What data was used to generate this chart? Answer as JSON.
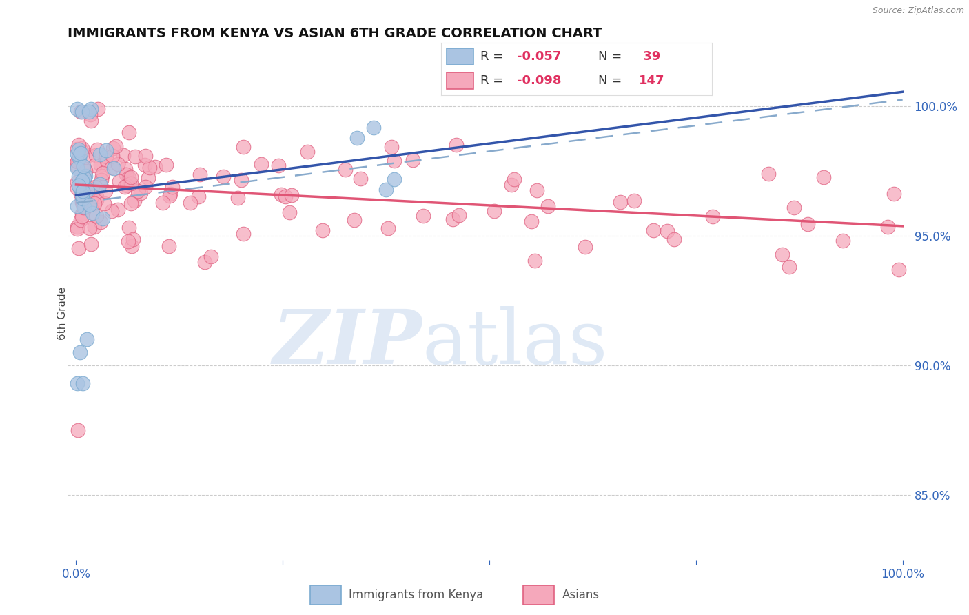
{
  "title": "IMMIGRANTS FROM KENYA VS ASIAN 6TH GRADE CORRELATION CHART",
  "source_text": "Source: ZipAtlas.com",
  "ylabel": "6th Grade",
  "color_kenya": "#aac4e2",
  "color_kenya_edge": "#7aaad0",
  "color_asian": "#f5a8bb",
  "color_asian_edge": "#e06080",
  "color_trend_kenya_solid": "#3355aa",
  "color_trend_kenya_dashed": "#88aacc",
  "color_trend_asian": "#e05575",
  "watermark_zip_color": "#c8d8ee",
  "watermark_atlas_color": "#b0c8e8",
  "legend_text_color": "#333333",
  "legend_value_color": "#e03060",
  "axis_tick_color": "#3366bb",
  "grid_color": "#cccccc",
  "r_kenya": "-0.057",
  "n_kenya": "39",
  "r_asian": "-0.098",
  "n_asian": "147"
}
